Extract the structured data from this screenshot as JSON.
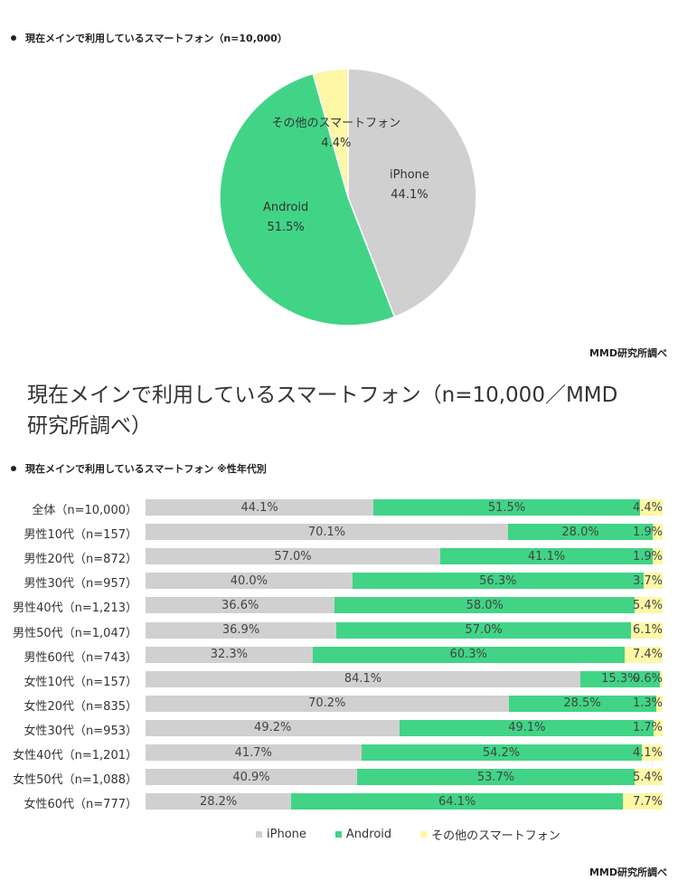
{
  "pie_section": {
    "title": "現在メインで利用しているスマートフォン（n=10,000）",
    "credit": "MMD研究所調べ"
  },
  "caption": {
    "line1": "現在メインで利用しているスマートフォン（n=10,000／MMD",
    "line2": "研究所調べ）"
  },
  "bar_section": {
    "title": "現在メインで利用しているスマートフォン ※性年代別",
    "credit": "MMD研究所調べ"
  },
  "colors": {
    "iphone": "#d0d0d0",
    "android": "#41d486",
    "other": "#fdf7a6"
  },
  "chart_data": [
    {
      "type": "pie",
      "title": "現在メインで利用しているスマートフォン（n=10,000）",
      "slices": [
        {
          "label": "iPhone",
          "value": 44.1,
          "value_label": "44.1%"
        },
        {
          "label": "Android",
          "value": 51.5,
          "value_label": "51.5%"
        },
        {
          "label": "その他のスマートフォン",
          "value": 4.4,
          "value_label": "4.4%"
        }
      ]
    },
    {
      "type": "bar",
      "orientation": "horizontal",
      "stacked": "100%",
      "title": "現在メインで利用しているスマートフォン ※性年代別",
      "legend_position": "bottom",
      "series_names": [
        "iPhone",
        "Android",
        "その他のスマートフォン"
      ],
      "rows": [
        {
          "label": "全体（n=10,000）",
          "values": [
            44.1,
            51.5,
            4.4
          ],
          "labels": [
            "44.1%",
            "51.5%",
            "4.4%"
          ]
        },
        {
          "label": "男性10代（n=157）",
          "values": [
            70.1,
            28.0,
            1.9
          ],
          "labels": [
            "70.1%",
            "28.0%",
            "1.9%"
          ]
        },
        {
          "label": "男性20代（n=872）",
          "values": [
            57.0,
            41.1,
            1.9
          ],
          "labels": [
            "57.0%",
            "41.1%",
            "1.9%"
          ]
        },
        {
          "label": "男性30代（n=957）",
          "values": [
            40.0,
            56.3,
            3.7
          ],
          "labels": [
            "40.0%",
            "56.3%",
            "3.7%"
          ]
        },
        {
          "label": "男性40代（n=1,213）",
          "values": [
            36.6,
            58.0,
            5.4
          ],
          "labels": [
            "36.6%",
            "58.0%",
            "5.4%"
          ]
        },
        {
          "label": "男性50代（n=1,047）",
          "values": [
            36.9,
            57.0,
            6.1
          ],
          "labels": [
            "36.9%",
            "57.0%",
            "6.1%"
          ]
        },
        {
          "label": "男性60代（n=743）",
          "values": [
            32.3,
            60.3,
            7.4
          ],
          "labels": [
            "32.3%",
            "60.3%",
            "7.4%"
          ]
        },
        {
          "label": "女性10代（n=157）",
          "values": [
            84.1,
            15.3,
            0.6
          ],
          "labels": [
            "84.1%",
            "15.3%",
            "0.6%"
          ]
        },
        {
          "label": "女性20代（n=835）",
          "values": [
            70.2,
            28.5,
            1.3
          ],
          "labels": [
            "70.2%",
            "28.5%",
            "1.3%"
          ]
        },
        {
          "label": "女性30代（n=953）",
          "values": [
            49.2,
            49.1,
            1.7
          ],
          "labels": [
            "49.2%",
            "49.1%",
            "1.7%"
          ]
        },
        {
          "label": "女性40代（n=1,201）",
          "values": [
            41.7,
            54.2,
            4.1
          ],
          "labels": [
            "41.7%",
            "54.2%",
            "4.1%"
          ]
        },
        {
          "label": "女性50代（n=1,088）",
          "values": [
            40.9,
            53.7,
            5.4
          ],
          "labels": [
            "40.9%",
            "53.7%",
            "5.4%"
          ]
        },
        {
          "label": "女性60代（n=777）",
          "values": [
            28.2,
            64.1,
            7.7
          ],
          "labels": [
            "28.2%",
            "64.1%",
            "7.7%"
          ]
        }
      ]
    }
  ]
}
